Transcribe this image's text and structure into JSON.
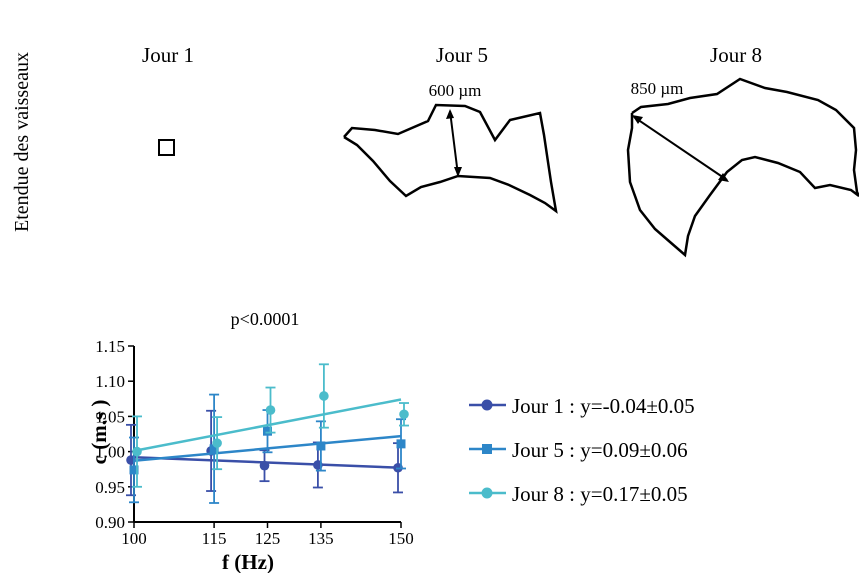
{
  "side_label": "Etendue des vaisseaux",
  "panels": [
    {
      "title": "Jour 1"
    },
    {
      "title": "Jour 5",
      "annotation": "600 µm"
    },
    {
      "title": "Jour 8",
      "annotation": "850 µm"
    }
  ],
  "chart_data": {
    "type": "scatter",
    "title": "p<0.0001",
    "xlabel": "f (Hz)",
    "ylabel": "c (m.s )",
    "xlim": [
      100,
      150
    ],
    "ylim": [
      0.9,
      1.15
    ],
    "x_ticks": [
      100,
      115,
      125,
      135,
      150
    ],
    "y_ticks": [
      "0.90",
      "0.95",
      "1.00",
      "1.05",
      "1.10",
      "1.15"
    ],
    "grid": false,
    "legend_position": "right",
    "series": [
      {
        "name": "Jour 1 : y=-0.04±0.05",
        "marker": "circle",
        "color": "#3a4fa8",
        "x": [
          100,
          115,
          125,
          135,
          150
        ],
        "y": [
          0.988,
          1.001,
          0.98,
          0.981,
          0.977
        ],
        "err": [
          0.05,
          0.057,
          0.022,
          0.032,
          0.035
        ],
        "fit": [
          0.992,
          0.977
        ]
      },
      {
        "name": "Jour 5 : y=0.09±0.06",
        "marker": "square",
        "color": "#2d86c8",
        "x": [
          100,
          115,
          125,
          135,
          150
        ],
        "y": [
          0.974,
          1.004,
          1.029,
          1.008,
          1.011
        ],
        "err": [
          0.046,
          0.077,
          0.03,
          0.035,
          0.035
        ],
        "fit": [
          0.987,
          1.022
        ]
      },
      {
        "name": "Jour 8 : y=0.17±0.05",
        "marker": "circle",
        "color": "#4bbccb",
        "x": [
          100,
          115,
          125,
          135,
          150
        ],
        "y": [
          1.0,
          1.012,
          1.059,
          1.079,
          1.053
        ],
        "err": [
          0.05,
          0.037,
          0.032,
          0.045,
          0.016
        ],
        "fit": [
          1.001,
          1.074
        ]
      }
    ]
  }
}
